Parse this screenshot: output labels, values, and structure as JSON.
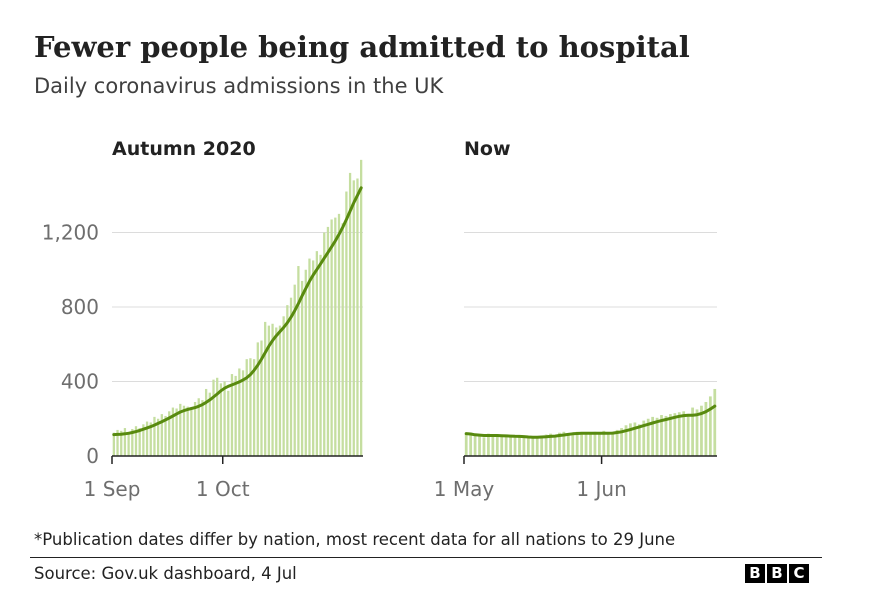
{
  "title": "Fewer people being admitted to hospital",
  "subtitle": "Daily coronavirus admissions in the UK",
  "footnote": "*Publication dates differ by nation, most recent data for all nations to 29 June",
  "source": "Source: Gov.uk dashboard, 4 Jul",
  "logo": [
    "B",
    "B",
    "C"
  ],
  "colors": {
    "bars": "#c5dea0",
    "line": "#588a0f",
    "grid": "#dcdcdc",
    "axis": "#222222",
    "tick_text": "#6e6e6e"
  },
  "chart_data": [
    {
      "type": "bar",
      "panel_title": "Autumn 2020",
      "ylim": [
        0,
        1600
      ],
      "yticks": [
        0,
        400,
        800,
        1200
      ],
      "ytick_labels": [
        "0",
        "400",
        "800",
        "1,200"
      ],
      "x_start": "1 Sep",
      "x_ticks": [
        {
          "day": 0,
          "label": "1 Sep"
        },
        {
          "day": 30,
          "label": "1 Oct"
        }
      ],
      "series": [
        {
          "type": "bar",
          "values": [
            125,
            140,
            135,
            150,
            130,
            145,
            160,
            150,
            170,
            185,
            180,
            210,
            200,
            225,
            215,
            240,
            260,
            255,
            280,
            270,
            265,
            260,
            290,
            310,
            300,
            360,
            340,
            410,
            420,
            390,
            400,
            350,
            440,
            430,
            470,
            460,
            520,
            525,
            520,
            610,
            620,
            720,
            700,
            710,
            690,
            700,
            750,
            810,
            850,
            920,
            1020,
            940,
            1000,
            1060,
            1050,
            1100,
            1080,
            1200,
            1230,
            1270,
            1280,
            1300,
            1250,
            1420,
            1520,
            1480,
            1490,
            1590
          ]
        },
        {
          "type": "line",
          "values": [
            115,
            116,
            117,
            119,
            122,
            126,
            131,
            137,
            144,
            151,
            158,
            166,
            175,
            184,
            194,
            204,
            215,
            226,
            236,
            244,
            250,
            255,
            260,
            267,
            276,
            288,
            301,
            317,
            333,
            350,
            364,
            374,
            382,
            390,
            398,
            408,
            420,
            437,
            460,
            488,
            520,
            555,
            590,
            620,
            646,
            668,
            690,
            715,
            745,
            780,
            818,
            860,
            900,
            938,
            972,
            1002,
            1032,
            1062,
            1092,
            1123,
            1155,
            1190,
            1228,
            1270,
            1315,
            1360,
            1400,
            1440
          ]
        }
      ]
    },
    {
      "type": "bar",
      "panel_title": "Now",
      "ylim": [
        0,
        1600
      ],
      "yticks": [
        0,
        400,
        800,
        1200
      ],
      "x_start": "1 May",
      "x_ticks": [
        {
          "day": 0,
          "label": "1 May"
        },
        {
          "day": 31,
          "label": "1 Jun"
        }
      ],
      "series": [
        {
          "type": "bar",
          "values": [
            125,
            120,
            110,
            115,
            100,
            120,
            110,
            115,
            105,
            110,
            100,
            110,
            105,
            100,
            95,
            100,
            105,
            110,
            115,
            120,
            110,
            125,
            130,
            120,
            125,
            130,
            115,
            120,
            125,
            130,
            120,
            135,
            125,
            130,
            140,
            150,
            165,
            175,
            180,
            170,
            190,
            200,
            210,
            205,
            220,
            215,
            225,
            230,
            235,
            240,
            225,
            260,
            250,
            270,
            290,
            320,
            360
          ]
        },
        {
          "type": "line",
          "values": [
            120,
            118,
            114,
            112,
            110,
            110,
            110,
            110,
            109,
            108,
            107,
            106,
            105,
            104,
            102,
            101,
            101,
            102,
            103,
            105,
            107,
            110,
            113,
            116,
            119,
            121,
            122,
            122,
            122,
            122,
            122,
            122,
            122,
            123,
            126,
            130,
            136,
            142,
            149,
            156,
            163,
            170,
            177,
            184,
            190,
            196,
            202,
            208,
            213,
            217,
            219,
            219,
            222,
            228,
            238,
            252,
            268
          ]
        }
      ]
    }
  ]
}
